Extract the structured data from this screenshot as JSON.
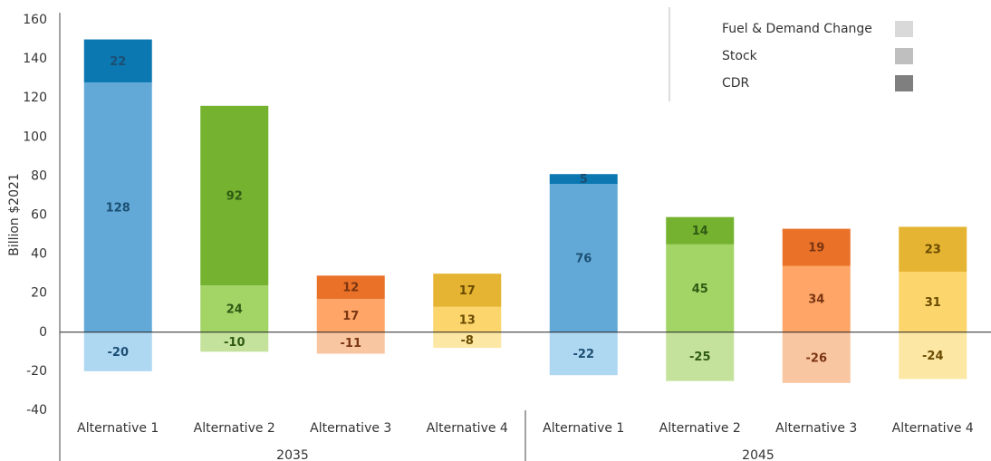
{
  "chart_data": {
    "type": "stacked_bar",
    "y_label": "Billion $2021",
    "groups": [
      "2035",
      "2045"
    ],
    "categories": [
      "Alternative 1",
      "Alternative 2",
      "Alternative 3",
      "Alternative 4",
      "Alternative 1",
      "Alternative 2",
      "Alternative 3",
      "Alternative 4"
    ],
    "series": [
      {
        "name": "Fuel & Demand Change",
        "color": "#d9d9d9",
        "bar_colors": [
          "#aed7f2",
          "#c4e29c",
          "#f9c6a2",
          "#fde7a4",
          "#aed7f2",
          "#c4e29c",
          "#f9c6a2",
          "#fde7a4"
        ],
        "values": [
          -20,
          -10,
          -11,
          -8,
          -22,
          -25,
          -26,
          -24
        ]
      },
      {
        "name": "Stock",
        "color": "#bfbfbf",
        "bar_colors": [
          "#62a9d7",
          "#a2d466",
          "#fea567",
          "#fcd56c",
          "#62a9d7",
          "#a2d466",
          "#fea567",
          "#fcd56c"
        ],
        "values": [
          128,
          24,
          17,
          13,
          76,
          45,
          34,
          31
        ]
      },
      {
        "name": "CDR",
        "color": "#7f7f7f",
        "bar_colors": [
          "#0b78b1",
          "#74b22f",
          "#ea7128",
          "#e5b432",
          "#0b78b1",
          "#74b22f",
          "#ea7128",
          "#e5b432"
        ],
        "values": [
          22,
          92,
          12,
          17,
          5,
          14,
          19,
          23
        ]
      }
    ],
    "label_colors": [
      "#1c4f73",
      "#2f5a14",
      "#7a3512",
      "#6a4b02",
      "#1c4f73",
      "#2f5a14",
      "#7a3512",
      "#6a4b02"
    ],
    "ylim": [
      -40,
      160
    ],
    "yticks": [
      -40,
      -20,
      0,
      20,
      40,
      60,
      80,
      100,
      120,
      140,
      160
    ]
  }
}
